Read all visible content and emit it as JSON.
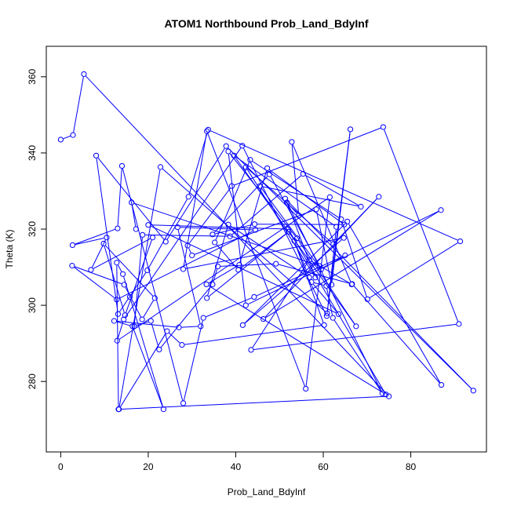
{
  "chart_data": {
    "type": "line",
    "title": "ATOM1 Northbound Prob_Land_BdyInf",
    "xlabel": "Prob_Land_BdyInf",
    "ylabel": "Theta (K)",
    "xlim": [
      -3.3,
      97.3
    ],
    "ylim": [
      261.5,
      368
    ],
    "xticks": [
      0,
      20,
      40,
      60,
      80
    ],
    "yticks": [
      280,
      300,
      320,
      340,
      360
    ],
    "grid": false,
    "series": [
      {
        "color": "#0000ff",
        "marker": "open-circle",
        "x": [
          0,
          2.8,
          5.3,
          75,
          13.2,
          12.8,
          14.2,
          15.8,
          23.5,
          16.4,
          12.2,
          27,
          32,
          26.7,
          44.5,
          12.8,
          2.6,
          14.5,
          18.6,
          21.5,
          9.8,
          14.7,
          21,
          6.9,
          10.5,
          2.7,
          13,
          14,
          28,
          32.6,
          44.2,
          65,
          59.5,
          45.5,
          68.6,
          55.4,
          38.7,
          18.7,
          16.8,
          20.6,
          22.5,
          34.7,
          35.9,
          49.2,
          66.6,
          87,
          65.5,
          41.6,
          64.7,
          28,
          33.4,
          56,
          61.5,
          12.9,
          14.4,
          41.5,
          60.8,
          66.2,
          61.9,
          58.4,
          30,
          29,
          39.1,
          73.7,
          91,
          43.5,
          56.8,
          66.5,
          52.8,
          54.4,
          51.7,
          58.2,
          42.3,
          62.3,
          72.7,
          46.3,
          86.9,
          42.3,
          38.3,
          54,
          67.5,
          39.6,
          63,
          60.9,
          22.8,
          13.3,
          24.3,
          27.7,
          60.2,
          53.4,
          56.8,
          38.3,
          33.4,
          52.1,
          40.6,
          35.2,
          43.3,
          64.1,
          70.1,
          91.3,
          33.7,
          29.2,
          19.8,
          13.1,
          8.1,
          24,
          37.8,
          94.3,
          51.3,
          73.5,
          62.2,
          60.7,
          57.3,
          63.5,
          20,
          52,
          74.3,
          33.3,
          40.8,
          47.2,
          64.8,
          44.3,
          34.7,
          47.7,
          59.2,
          16.2,
          17.2
        ],
        "y": [
          343.5,
          344.7,
          360.7,
          276.1,
          272.7,
          311.2,
          308.2,
          302.2,
          272.7,
          294.5,
          295.9,
          294.2,
          294.5,
          320.5,
          319.8,
          301.5,
          310.4,
          305.4,
          296.3,
          301.9,
          316.2,
          297.4,
          317.8,
          309.3,
          317.8,
          315.8,
          320.2,
          336.6,
          274.3,
          296.7,
          302.2,
          313.1,
          309.4,
          331.3,
          325.9,
          334.5,
          318.1,
          318.5,
          294.5,
          295.9,
          288.4,
          305.5,
          310.2,
          310.9,
          305.6,
          279.1,
          322.0,
          294.8,
          317.7,
          309.5,
          345.7,
          278.1,
          328.4,
          290.7,
          296.3,
          341.9,
          297.2,
          346.2,
          305.4,
          325.2,
          313.1,
          315.7,
          331.3,
          346.8,
          295.1,
          288.3,
          311.9,
          305.5,
          342.9,
          323.6,
          327.0,
          307.3,
          336.3,
          316.1,
          328.5,
          296.4,
          325.0,
          300.0,
          340.4,
          317.6,
          294.5,
          339.3,
          320.6,
          297.9,
          336.3,
          272.7,
          293.2,
          289.6,
          294.8,
          316.9,
          307.3,
          321.2,
          301.9,
          319.3,
          309.3,
          316.5,
          338.2,
          322.6,
          301.6,
          316.8,
          346.1,
          328.5,
          309.2,
          297.7,
          339.3,
          316.7,
          341.8,
          277.6,
          328.0,
          276.9,
          296.7,
          305.1,
          306.1,
          297.7,
          321.1,
          320.0,
          276.6,
          305.5,
          310.6,
          336.0,
          321.2,
          321.3,
          318.6,
          334.4,
          310.3,
          327.0,
          320.0
        ]
      }
    ]
  }
}
